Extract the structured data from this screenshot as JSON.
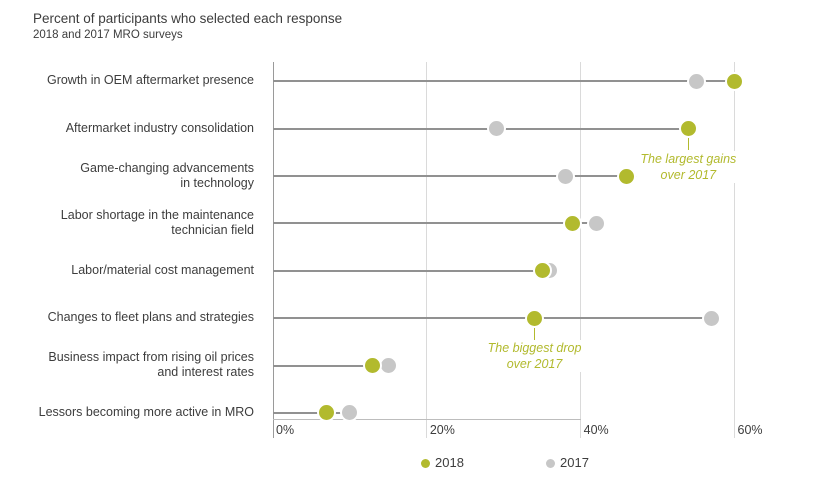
{
  "title": "Percent of participants who selected each response",
  "subtitle": "2018 and 2017 MRO surveys",
  "colors": {
    "series_2018": "#b2ba2e",
    "series_2017": "#c7c7c7",
    "stem": "#919191",
    "gridline": "#dadada",
    "axis_line": "#9a9a9a",
    "text": "#3d3d3d",
    "annotation_text": "#b2ba2e"
  },
  "legend": {
    "items": [
      {
        "label": "2018",
        "color": "#b2ba2e"
      },
      {
        "label": "2017",
        "color": "#c7c7c7"
      }
    ]
  },
  "chart_data": {
    "type": "scatter",
    "variant": "horizontal dot plot (dumbbell)",
    "title": "Percent of participants who selected each response",
    "subtitle": "2018 and 2017 MRO surveys",
    "xlabel": "",
    "ylabel": "",
    "x_axis": {
      "ticks": [
        "0%",
        "20%",
        "40%",
        "60%"
      ],
      "tick_values": [
        0,
        20,
        40,
        60
      ],
      "min": 0,
      "max": 60,
      "grid": true
    },
    "legend_position": "bottom-center",
    "series": [
      {
        "name": "2018",
        "color": "#b2ba2e"
      },
      {
        "name": "2017",
        "color": "#c7c7c7"
      }
    ],
    "rows": [
      {
        "label_lines": [
          "Growth in OEM aftermarket presence"
        ],
        "v2018": 60,
        "v2017": 55
      },
      {
        "label_lines": [
          "Aftermarket industry consolidation"
        ],
        "v2018": 54,
        "v2017": 29
      },
      {
        "label_lines": [
          "Game-changing advancements",
          "in technology"
        ],
        "v2018": 46,
        "v2017": 38
      },
      {
        "label_lines": [
          "Labor shortage in the maintenance",
          "technician field"
        ],
        "v2018": 39,
        "v2017": 42
      },
      {
        "label_lines": [
          "Labor/material cost management"
        ],
        "v2018": 35,
        "v2017": 36
      },
      {
        "label_lines": [
          "Changes to fleet plans and strategies"
        ],
        "v2018": 34,
        "v2017": 57
      },
      {
        "label_lines": [
          "Business impact from rising oil prices",
          "and interest rates"
        ],
        "v2018": 13,
        "v2017": 15
      },
      {
        "label_lines": [
          "Lessors becoming more active in MRO"
        ],
        "v2018": 7,
        "v2017": 10
      }
    ],
    "annotations": [
      {
        "lines": [
          "The largest gains",
          "over 2017"
        ],
        "leaders": [
          {
            "row": 1,
            "series": "2018",
            "dir": "down"
          },
          {
            "row": 2,
            "series": "2018",
            "dir": "right"
          }
        ]
      },
      {
        "lines": [
          "The biggest drop",
          "over 2017"
        ],
        "leaders": [
          {
            "row": 5,
            "series": "2018",
            "dir": "down"
          }
        ]
      }
    ]
  }
}
